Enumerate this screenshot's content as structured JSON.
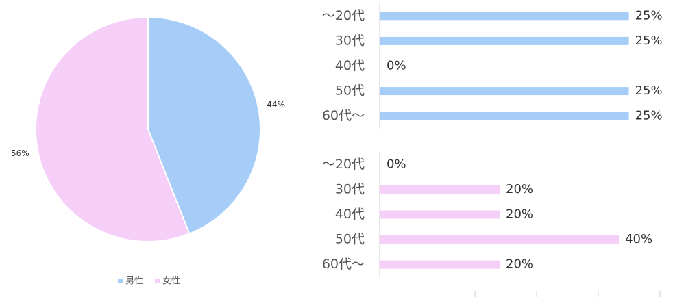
{
  "chart_data": [
    {
      "type": "pie",
      "categories": [
        "男性",
        "女性"
      ],
      "values": [
        44,
        56
      ],
      "value_labels": [
        "44%",
        "56%"
      ],
      "colors": [
        "#a5cdf8",
        "#f6cff8"
      ],
      "legend": "bottom"
    },
    {
      "type": "hbar",
      "categories": [
        "～20代",
        "30代",
        "40代",
        "50代",
        "60代～"
      ],
      "values": [
        25,
        25,
        0,
        25,
        25
      ],
      "value_labels": [
        "25%",
        "25%",
        "0%",
        "25%",
        "25%"
      ],
      "color": "#a5cdf8",
      "xlim": [
        0,
        28.2
      ]
    },
    {
      "type": "hbar",
      "categories": [
        "～20代",
        "30代",
        "40代",
        "50代",
        "60代～"
      ],
      "values": [
        0,
        20,
        20,
        40,
        20
      ],
      "value_labels": [
        "0%",
        "20%",
        "20%",
        "40%",
        "20%"
      ],
      "color": "#f6cff8",
      "xlim": [
        0,
        47
      ]
    }
  ]
}
